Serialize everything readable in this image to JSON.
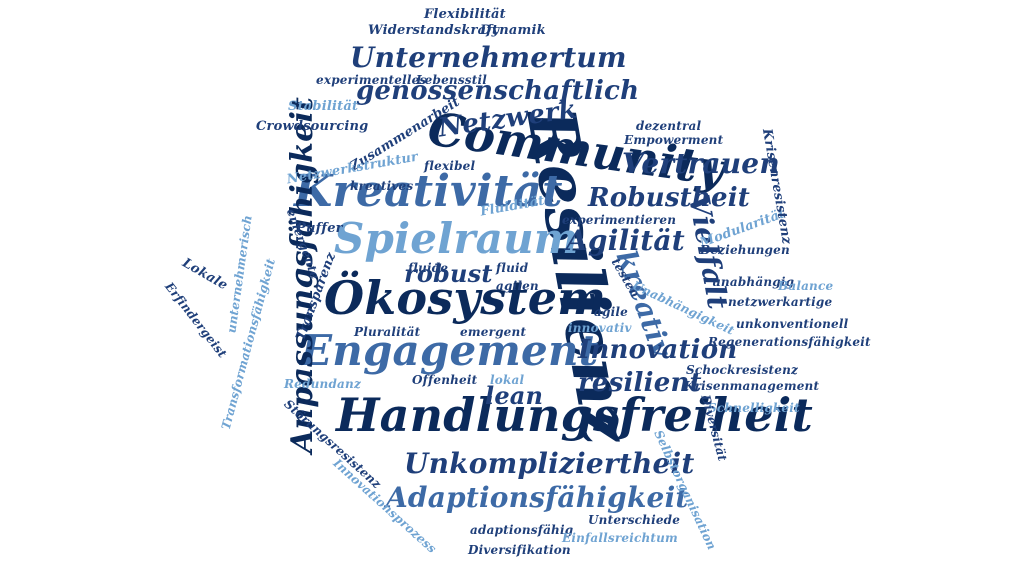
{
  "colors": {
    "dark_navy": "#0b2a5b",
    "navy": "#1f3f7a",
    "mid_blue": "#3d6aa6",
    "light_blue": "#6fa3d2",
    "background": "#ffffff"
  },
  "words": [
    {
      "id": "resilienz",
      "text": "Resilienz",
      "color": "dark_navy"
    },
    {
      "id": "community",
      "text": "Community",
      "color": "dark_navy"
    },
    {
      "id": "handlungsfreiheit",
      "text": "Handlungsfreiheit",
      "color": "dark_navy"
    },
    {
      "id": "oekosystem",
      "text": "Ökosystem",
      "color": "dark_navy"
    },
    {
      "id": "engagement",
      "text": "Engagement",
      "color": "mid_blue"
    },
    {
      "id": "kreativitaet",
      "text": "Kreativität",
      "color": "mid_blue"
    },
    {
      "id": "spielraum",
      "text": "Spielraum",
      "color": "light_blue"
    },
    {
      "id": "anpassungsfaehigkeit",
      "text": "Anpassungsfähigkeit",
      "color": "dark_navy"
    },
    {
      "id": "unternehmertum",
      "text": "Unternehmertum",
      "color": "navy"
    },
    {
      "id": "genossenschaftlich",
      "text": "genossenschaftlich",
      "color": "navy"
    },
    {
      "id": "netzwerk",
      "text": "Netzwerk",
      "color": "navy"
    },
    {
      "id": "vertrauen",
      "text": "Vertrauen",
      "color": "navy"
    },
    {
      "id": "robustheit",
      "text": "Robustheit",
      "color": "navy"
    },
    {
      "id": "agilitaet",
      "text": "Agilität",
      "color": "navy"
    },
    {
      "id": "vielfalt",
      "text": "Vielfalt",
      "color": "navy"
    },
    {
      "id": "kreativ",
      "text": "kreativ",
      "color": "mid_blue"
    },
    {
      "id": "robust",
      "text": "robust",
      "color": "navy"
    },
    {
      "id": "innovation",
      "text": "Innovation",
      "color": "navy"
    },
    {
      "id": "resilient",
      "text": "resilient",
      "color": "navy"
    },
    {
      "id": "lean",
      "text": "lean",
      "color": "navy"
    },
    {
      "id": "unkompliziertheit",
      "text": "Unkompliziertheit",
      "color": "navy"
    },
    {
      "id": "adaptionsfaehigkeit",
      "text": "Adaptionsfähigkeit",
      "color": "mid_blue"
    },
    {
      "id": "flexibilitaet",
      "text": "Flexibilität",
      "color": "navy"
    },
    {
      "id": "widerstandskraft",
      "text": "Widerstandskraft",
      "color": "navy"
    },
    {
      "id": "dynamik",
      "text": "Dynamik",
      "color": "navy"
    },
    {
      "id": "experimentelles",
      "text": "experimentelles",
      "color": "navy"
    },
    {
      "id": "lebensstil",
      "text": "Lebensstil",
      "color": "navy"
    },
    {
      "id": "stabilitaet",
      "text": "Stabilität",
      "color": "light_blue"
    },
    {
      "id": "zusammenarbeit",
      "text": "Zusammenarbeit",
      "color": "navy"
    },
    {
      "id": "crowdsourcing",
      "text": "Crowdsourcing",
      "color": "navy"
    },
    {
      "id": "netzwerkstruktur",
      "text": "Netzwerkstruktur",
      "color": "light_blue"
    },
    {
      "id": "flexibel",
      "text": "flexibel",
      "color": "navy"
    },
    {
      "id": "kreatives",
      "text": "kreatives",
      "color": "navy"
    },
    {
      "id": "puffer",
      "text": "Puffer",
      "color": "navy"
    },
    {
      "id": "emergente",
      "text": "emergente",
      "color": "navy"
    },
    {
      "id": "fluiditaet",
      "text": "Fluidität",
      "color": "light_blue"
    },
    {
      "id": "experimentieren",
      "text": "experimentieren",
      "color": "navy"
    },
    {
      "id": "modularitaet",
      "text": "Modularität",
      "color": "light_blue"
    },
    {
      "id": "beziehungen",
      "text": "Beziehungen",
      "color": "navy"
    },
    {
      "id": "krisenresistenz",
      "text": "Krisenresistenz",
      "color": "navy"
    },
    {
      "id": "dezentral",
      "text": "dezentral",
      "color": "navy"
    },
    {
      "id": "empowerment",
      "text": "Empowerment",
      "color": "navy"
    },
    {
      "id": "unternehmerisch",
      "text": "unternehmerisch",
      "color": "light_blue"
    },
    {
      "id": "lokale",
      "text": "Lokale",
      "color": "navy"
    },
    {
      "id": "transparenz",
      "text": "Transparenz",
      "color": "navy"
    },
    {
      "id": "fluide",
      "text": "fluide",
      "color": "navy"
    },
    {
      "id": "fluid",
      "text": "fluid",
      "color": "navy"
    },
    {
      "id": "agilen",
      "text": "agilen",
      "color": "navy"
    },
    {
      "id": "testen",
      "text": "testen",
      "color": "navy"
    },
    {
      "id": "unabhaengig",
      "text": "unabhängig",
      "color": "navy"
    },
    {
      "id": "balance",
      "text": "Balance",
      "color": "light_blue"
    },
    {
      "id": "netzwerkartige",
      "text": "netzwerkartige",
      "color": "navy"
    },
    {
      "id": "erfindergeist",
      "text": "Erfindergeist",
      "color": "navy"
    },
    {
      "id": "transformationsfaehigkeit",
      "text": "Transformationsfähigkeit",
      "color": "light_blue"
    },
    {
      "id": "pluralitaet",
      "text": "Pluralität",
      "color": "navy"
    },
    {
      "id": "emergent",
      "text": "emergent",
      "color": "navy"
    },
    {
      "id": "agile",
      "text": "agile",
      "color": "navy"
    },
    {
      "id": "unabhaengigkeit",
      "text": "Unabhängigkeit",
      "color": "light_blue"
    },
    {
      "id": "unkonventionell",
      "text": "unkonventionell",
      "color": "navy"
    },
    {
      "id": "innovativ",
      "text": "innovativ",
      "color": "light_blue"
    },
    {
      "id": "regenerationsfaehigkeit",
      "text": "Regenerationsfähigkeit",
      "color": "navy"
    },
    {
      "id": "redundanz",
      "text": "Redundanz",
      "color": "light_blue"
    },
    {
      "id": "offenheit",
      "text": "Offenheit",
      "color": "navy"
    },
    {
      "id": "lokal",
      "text": "lokal",
      "color": "light_blue"
    },
    {
      "id": "schockresistenz",
      "text": "Schockresistenz",
      "color": "navy"
    },
    {
      "id": "krisenmanagement",
      "text": "Krisenmanagement",
      "color": "navy"
    },
    {
      "id": "schnelligkeit",
      "text": "Schnelligkeit",
      "color": "light_blue"
    },
    {
      "id": "diversitaet",
      "text": "Diversität",
      "color": "navy"
    },
    {
      "id": "stoerungsresistenz",
      "text": "Störungsresistenz",
      "color": "navy"
    },
    {
      "id": "selbstorganisation",
      "text": "Selbstorganisation",
      "color": "light_blue"
    },
    {
      "id": "innovationsprozess",
      "text": "Innovationsprozess",
      "color": "light_blue"
    },
    {
      "id": "unterschiede",
      "text": "Unterschiede",
      "color": "navy"
    },
    {
      "id": "adaptionsfaehig",
      "text": "adaptionsfähig",
      "color": "navy"
    },
    {
      "id": "einfallsreichtum",
      "text": "Einfallsreichtum",
      "color": "light_blue"
    },
    {
      "id": "diversifikation",
      "text": "Diversifikation",
      "color": "navy"
    }
  ]
}
